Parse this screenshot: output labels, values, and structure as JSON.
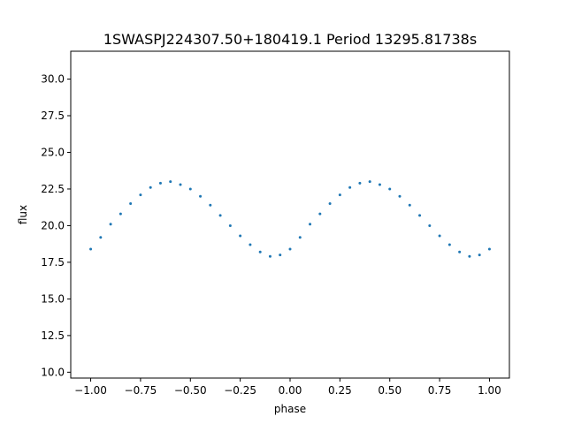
{
  "chart_data": {
    "type": "scatter",
    "title": "1SWASPJ224307.50+180419.1 Period 13295.81738s",
    "xlabel": "phase",
    "ylabel": "flux",
    "xlim": [
      -1.1,
      1.1
    ],
    "ylim": [
      9.6,
      31.9
    ],
    "xticks": [
      -1.0,
      -0.75,
      -0.5,
      -0.25,
      0.0,
      0.25,
      0.5,
      0.75,
      1.0
    ],
    "xtick_labels": [
      "−1.00",
      "−0.75",
      "−0.50",
      "−0.25",
      "0.00",
      "0.25",
      "0.50",
      "0.75",
      "1.00"
    ],
    "yticks": [
      10.0,
      12.5,
      15.0,
      17.5,
      20.0,
      22.5,
      25.0,
      27.5,
      30.0
    ],
    "ytick_labels": [
      "10.0",
      "12.5",
      "15.0",
      "17.5",
      "20.0",
      "22.5",
      "25.0",
      "27.5",
      "30.0"
    ],
    "grid": false,
    "marker_color": "#1f77b4",
    "series": [
      {
        "x": [
          -1.0,
          -0.95,
          -0.9,
          -0.85,
          -0.8,
          -0.75,
          -0.7,
          -0.65,
          -0.6,
          -0.55,
          -0.5,
          -0.45,
          -0.4,
          -0.35,
          -0.3,
          -0.25,
          -0.2,
          -0.15,
          -0.1,
          -0.05,
          0.0,
          0.05,
          0.1,
          0.15,
          0.2,
          0.25,
          0.3,
          0.35,
          0.4,
          0.45,
          0.5,
          0.55,
          0.6,
          0.65,
          0.7,
          0.75,
          0.8,
          0.85,
          0.9,
          0.95,
          1.0
        ],
        "y": [
          18.4,
          19.2,
          20.1,
          20.8,
          21.5,
          22.1,
          22.6,
          22.9,
          23.0,
          22.8,
          22.5,
          22.0,
          21.4,
          20.7,
          20.0,
          19.3,
          18.7,
          18.2,
          17.9,
          18.0,
          18.4,
          19.2,
          20.1,
          20.8,
          21.5,
          22.1,
          22.6,
          22.9,
          23.0,
          22.8,
          22.5,
          22.0,
          21.4,
          20.7,
          20.0,
          19.3,
          18.7,
          18.2,
          17.9,
          18.0,
          18.4
        ]
      }
    ]
  }
}
